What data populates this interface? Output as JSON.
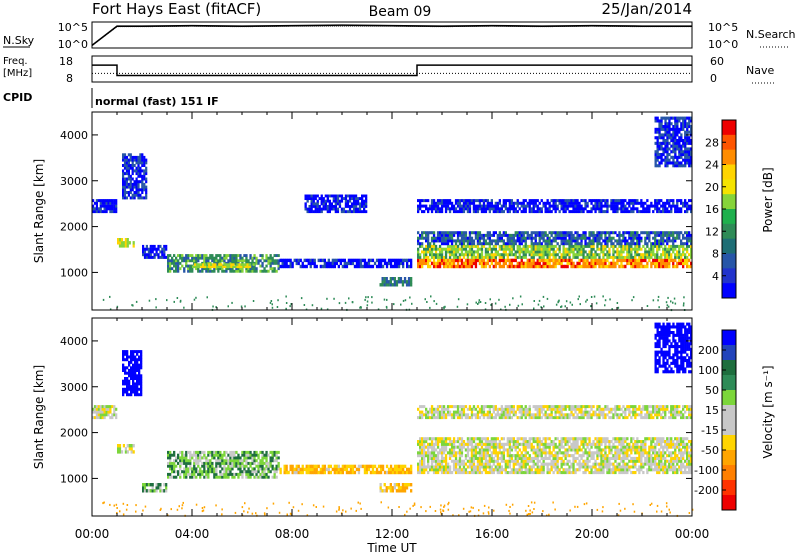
{
  "header": {
    "station": "Fort Hays East (fitACF)",
    "beam": "Beam 09",
    "date": "25/Jan/2014"
  },
  "panels": {
    "nsky": {
      "left_label": "N.Sky",
      "right_label": "N.Search",
      "left_ticks": [
        "10^5",
        "10^0"
      ],
      "right_ticks": [
        "10^5",
        "10^0"
      ]
    },
    "freq": {
      "left_label_1": "Freq.",
      "left_label_2": "[MHz]",
      "left_ticks": [
        "18",
        "8"
      ],
      "right_label": "Nave",
      "right_ticks": [
        "60",
        "0"
      ]
    },
    "cpid": {
      "label": "CPID",
      "text": "normal (fast) 151 IF"
    }
  },
  "colorbars": {
    "power": {
      "label": "Power [dB]",
      "ticks": [
        "28",
        "24",
        "20",
        "16",
        "12",
        "8",
        "4"
      ],
      "colors": [
        "#ee0000",
        "#ff5500",
        "#ff8c00",
        "#ffd400",
        "#f5e300",
        "#86d43a",
        "#1fb04d",
        "#2e8b57",
        "#1e6e75",
        "#2756a8",
        "#2233cc",
        "#0000ff"
      ]
    },
    "velocity": {
      "label": "Velocity [m s⁻¹]",
      "ticks": [
        "200",
        "100",
        "50",
        "15",
        "-15",
        "-50",
        "-100",
        "-200"
      ],
      "colors": [
        "#0000ff",
        "#2244bb",
        "#1e6e3e",
        "#2e8b57",
        "#7cd63a",
        "#c8c8c8",
        "#c8c8c8",
        "#ffd400",
        "#ffa500",
        "#ff7f00",
        "#ff3300",
        "#ee0000"
      ]
    }
  },
  "axes": {
    "ylabel": "Slant Range [km]",
    "yticks": [
      "4000",
      "3000",
      "2000",
      "1000"
    ],
    "xticks": [
      "00:00",
      "04:00",
      "08:00",
      "12:00",
      "16:00",
      "20:00",
      "00:00"
    ],
    "xlabel": "Time UT"
  },
  "chart_data": [
    {
      "type": "line",
      "title": "N.Sky / N.Search",
      "x": [
        0,
        1,
        2,
        4,
        6,
        8,
        10,
        12,
        14,
        16,
        18,
        20,
        22,
        24
      ],
      "series": [
        {
          "name": "N.Sky",
          "values": [
            0.5,
            4.2,
            4.2,
            4.3,
            4.2,
            4.3,
            4.4,
            4.3,
            4.2,
            4.3,
            4.2,
            4.3,
            4.2,
            4.2
          ]
        },
        {
          "name": "N.Search",
          "values": [
            0.5,
            4.1,
            4.1,
            4.2,
            4.1,
            4.2,
            4.2,
            4.2,
            4.1,
            4.2,
            4.1,
            4.2,
            4.1,
            4.1
          ]
        }
      ],
      "ylim_log10": [
        0,
        5
      ]
    },
    {
      "type": "line",
      "title": "Freq / Nave",
      "x": [
        0,
        1.0,
        1.0,
        13.0,
        13.0,
        24
      ],
      "series": [
        {
          "name": "Freq.",
          "values": [
            14.5,
            14.5,
            10.5,
            10.5,
            14.5,
            14.5
          ]
        },
        {
          "name": "Nave",
          "values": [
            20,
            20,
            20,
            20,
            20,
            20
          ]
        }
      ],
      "ylim": [
        8,
        18
      ]
    },
    {
      "type": "heatmap",
      "title": "Power",
      "xlabel": "Time UT",
      "ylabel": "Slant Range [km]",
      "xlim": [
        0,
        24
      ],
      "ylim": [
        180,
        4500
      ],
      "colorbar": {
        "label": "Power [dB]",
        "range": [
          0,
          30
        ]
      },
      "regions": [
        {
          "t": [
            0.0,
            1.0
          ],
          "r": [
            2300,
            2600
          ],
          "value": 6
        },
        {
          "t": [
            1.0,
            1.7
          ],
          "r": [
            1550,
            1750
          ],
          "value": 20
        },
        {
          "t": [
            1.2,
            2.2
          ],
          "r": [
            2600,
            3600
          ],
          "value": 8
        },
        {
          "t": [
            2.0,
            3.0
          ],
          "r": [
            1300,
            1600
          ],
          "value": 6
        },
        {
          "t": [
            3.0,
            7.5
          ],
          "r": [
            1000,
            1400
          ],
          "value": 14
        },
        {
          "t": [
            4.0,
            6.5
          ],
          "r": [
            1100,
            1200
          ],
          "value": 20
        },
        {
          "t": [
            7.5,
            12.8
          ],
          "r": [
            1100,
            1300
          ],
          "value": 6
        },
        {
          "t": [
            11.5,
            12.8
          ],
          "r": [
            700,
            900
          ],
          "value": 12
        },
        {
          "t": [
            8.5,
            11.0
          ],
          "r": [
            2300,
            2700
          ],
          "value": 6
        },
        {
          "t": [
            13.0,
            24.0
          ],
          "r": [
            1100,
            1300
          ],
          "value": 26
        },
        {
          "t": [
            13.0,
            24.0
          ],
          "r": [
            1300,
            1600
          ],
          "value": 18
        },
        {
          "t": [
            13.0,
            24.0
          ],
          "r": [
            1600,
            1900
          ],
          "value": 10
        },
        {
          "t": [
            13.0,
            24.0
          ],
          "r": [
            2300,
            2600
          ],
          "value": 6
        },
        {
          "t": [
            22.5,
            24.0
          ],
          "r": [
            3300,
            4400
          ],
          "value": 8
        }
      ]
    },
    {
      "type": "heatmap",
      "title": "Velocity",
      "xlabel": "Time UT",
      "ylabel": "Slant Range [km]",
      "xlim": [
        0,
        24
      ],
      "ylim": [
        180,
        4500
      ],
      "colorbar": {
        "label": "Velocity [m s⁻¹]",
        "range": [
          -250,
          250
        ]
      },
      "regions": [
        {
          "t": [
            0.0,
            1.0
          ],
          "r": [
            2300,
            2600
          ],
          "value": 0
        },
        {
          "t": [
            1.0,
            1.7
          ],
          "r": [
            1550,
            1750
          ],
          "value": 0
        },
        {
          "t": [
            1.2,
            2.0
          ],
          "r": [
            2800,
            3800
          ],
          "value": 200
        },
        {
          "t": [
            2.0,
            3.0
          ],
          "r": [
            700,
            900
          ],
          "value": 30
        },
        {
          "t": [
            3.0,
            7.5
          ],
          "r": [
            1000,
            1600
          ],
          "value": 30
        },
        {
          "t": [
            7.5,
            12.8
          ],
          "r": [
            1100,
            1300
          ],
          "value": -40
        },
        {
          "t": [
            11.5,
            12.8
          ],
          "r": [
            700,
            900
          ],
          "value": -40
        },
        {
          "t": [
            13.0,
            24.0
          ],
          "r": [
            1100,
            1900
          ],
          "value": 0
        },
        {
          "t": [
            13.0,
            24.0
          ],
          "r": [
            2300,
            2600
          ],
          "value": 0
        },
        {
          "t": [
            22.5,
            24.0
          ],
          "r": [
            3300,
            4400
          ],
          "value": 200
        }
      ]
    }
  ]
}
